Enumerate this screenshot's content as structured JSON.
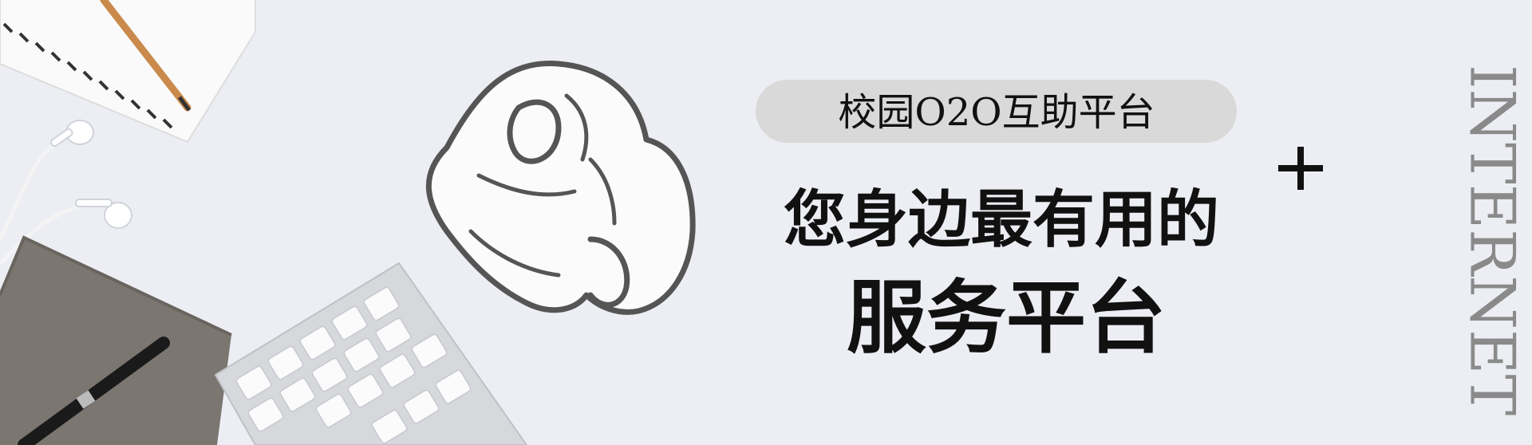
{
  "banner": {
    "badge": "校园O2O互助平台",
    "headline": "您身边最有用的",
    "subheadline": "服务平台",
    "side_text": "INTERNET"
  }
}
